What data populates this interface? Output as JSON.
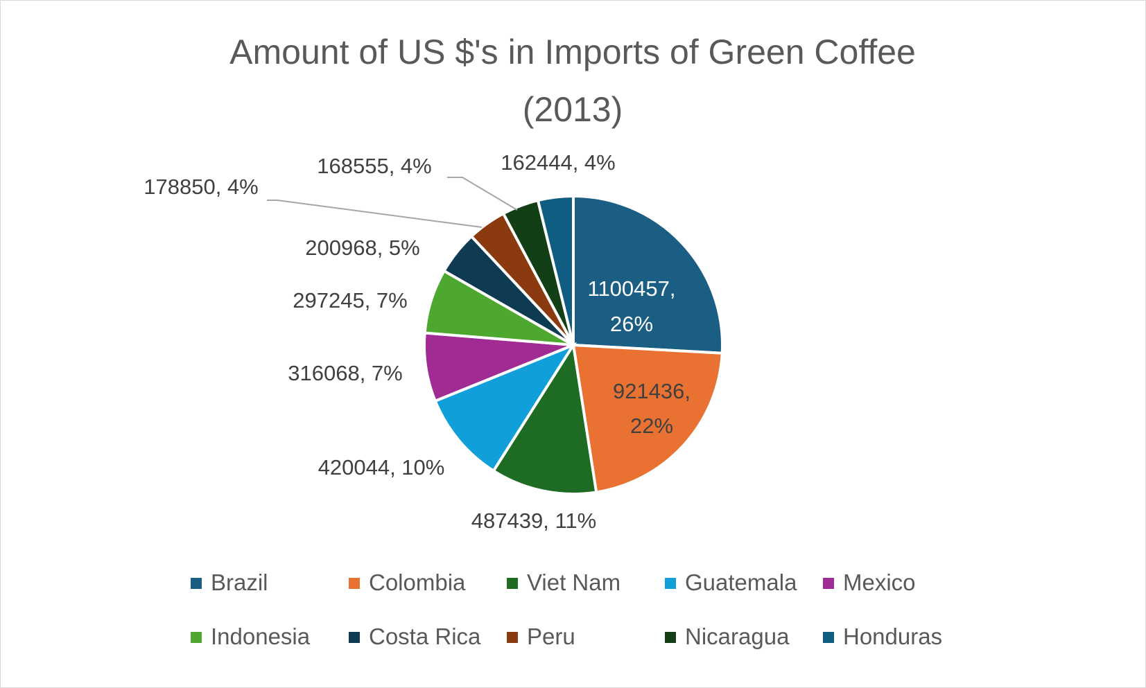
{
  "chart_data": {
    "type": "pie",
    "title": "Amount of US $'s in Imports of Green Coffee (2013)",
    "title_lines": [
      "Amount of US $'s in Imports of Green Coffee",
      "(2013)"
    ],
    "legend_position": "bottom",
    "slices": [
      {
        "name": "Brazil",
        "value": 1100457,
        "percent": "26%",
        "color": "#1b5e84"
      },
      {
        "name": "Colombia",
        "value": 921436,
        "percent": "22%",
        "color": "#e97132"
      },
      {
        "name": "Viet Nam",
        "value": 487439,
        "percent": "11%",
        "color": "#1e6b24"
      },
      {
        "name": "Guatemala",
        "value": 420044,
        "percent": "10%",
        "color": "#119fd9"
      },
      {
        "name": "Mexico",
        "value": 316068,
        "percent": "7%",
        "color": "#a02b93"
      },
      {
        "name": "Indonesia",
        "value": 297245,
        "percent": "7%",
        "color": "#4ea72e"
      },
      {
        "name": "Costa Rica",
        "value": 200968,
        "percent": "5%",
        "color": "#0e3a52"
      },
      {
        "name": "Peru",
        "value": 178850,
        "percent": "4%",
        "color": "#8b3a0f"
      },
      {
        "name": "Nicaragua",
        "value": 168555,
        "percent": "4%",
        "color": "#123f15"
      },
      {
        "name": "Honduras",
        "value": 162444,
        "percent": "4%",
        "color": "#0f5d80"
      }
    ]
  }
}
